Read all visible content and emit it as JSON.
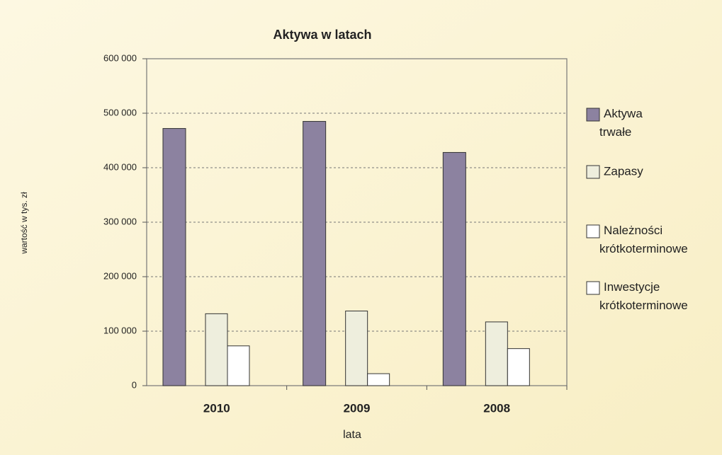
{
  "chart_data": {
    "type": "bar",
    "title": "Aktywa w latach",
    "x_label": "lata",
    "y_label": "wartość w tys. zł",
    "categories": [
      "2010",
      "2009",
      "2008"
    ],
    "series": [
      {
        "name": "Aktywa trwałe",
        "color": "#8c82a0",
        "values": [
          472000,
          485000,
          428000
        ]
      },
      {
        "name": "Zapasy",
        "color": "#eeeedd",
        "values": [
          132000,
          137000,
          117000
        ]
      },
      {
        "name": "Należności krótkoterminowe",
        "color": "#ffffff",
        "values": [
          73000,
          22000,
          68000
        ]
      },
      {
        "name": "Inwestycje krótkoterminowe",
        "color": "#ffffff",
        "values": [
          0,
          0,
          0
        ]
      }
    ],
    "ylim": [
      0,
      600000
    ],
    "yticks": [
      0,
      {
        "value": 100000,
        "label": "100 000"
      },
      {
        "value": 200000,
        "label": "200 000"
      },
      {
        "value": 300000,
        "label": "300 000"
      },
      {
        "value": 400000,
        "label": "400 000"
      },
      {
        "value": 500000,
        "label": "500 000"
      },
      {
        "value": 600000,
        "label": "600 000"
      }
    ],
    "grid": true,
    "legend": "right"
  }
}
